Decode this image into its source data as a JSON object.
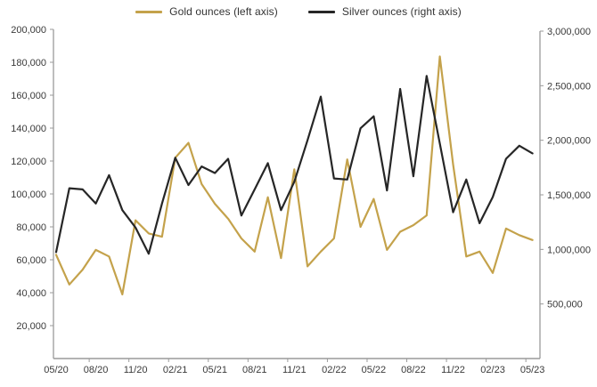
{
  "legend": {
    "items": [
      {
        "label": "Gold ounces (left axis)",
        "color": "#C4A24B",
        "icon": "gold-line-swatch"
      },
      {
        "label": "Silver ounces (right axis)",
        "color": "#262626",
        "icon": "silver-line-swatch"
      }
    ]
  },
  "colors": {
    "gold": "#C4A24B",
    "silver": "#262626",
    "axis_line": "#9a9a9a",
    "tick_text": "#3a3a3a",
    "background": "#ffffff"
  },
  "chart_data": {
    "type": "line",
    "title": "",
    "xlabel": "",
    "ylabel_left": "",
    "ylabel_right": "",
    "grid": false,
    "legend_position": "top",
    "x": [
      "05/20",
      "06/20",
      "07/20",
      "08/20",
      "09/20",
      "10/20",
      "11/20",
      "12/20",
      "01/21",
      "02/21",
      "03/21",
      "04/21",
      "05/21",
      "06/21",
      "07/21",
      "08/21",
      "09/21",
      "10/21",
      "11/21",
      "12/21",
      "01/22",
      "02/22",
      "03/22",
      "04/22",
      "05/22",
      "06/22",
      "07/22",
      "08/22",
      "09/22",
      "10/22",
      "11/22",
      "12/22",
      "01/23",
      "02/23",
      "03/23",
      "04/23",
      "05/23"
    ],
    "x_tick_labels": [
      "05/20",
      "08/20",
      "11/20",
      "02/21",
      "05/21",
      "08/21",
      "11/21",
      "02/22",
      "05/22",
      "08/22",
      "11/22",
      "02/23",
      "05/23"
    ],
    "series": [
      {
        "name": "Gold ounces (left axis)",
        "axis": "left",
        "color": "#C4A24B",
        "values": [
          63000,
          45000,
          54000,
          66000,
          62000,
          39000,
          84000,
          76000,
          74000,
          122000,
          131000,
          106000,
          94000,
          85000,
          73000,
          65000,
          98000,
          61000,
          115000,
          56000,
          65000,
          73000,
          121000,
          80000,
          97000,
          66000,
          77000,
          81000,
          87000,
          183500,
          118000,
          62000,
          65000,
          52000,
          79000,
          75000,
          72000
        ]
      },
      {
        "name": "Silver ounces (right axis)",
        "axis": "right",
        "color": "#262626",
        "values": [
          975000,
          1560000,
          1550000,
          1420000,
          1680000,
          1360000,
          1200000,
          960000,
          1420000,
          1840000,
          1590000,
          1760000,
          1700000,
          1830000,
          1310000,
          1550000,
          1790000,
          1360000,
          1620000,
          2000000,
          2400000,
          1650000,
          1640000,
          2110000,
          2220000,
          1540000,
          2470000,
          1670000,
          2590000,
          1970000,
          1340000,
          1640000,
          1240000,
          1480000,
          1830000,
          1950000,
          1880000
        ]
      }
    ],
    "left_axis": {
      "min": 0,
      "max": 200000,
      "label_min": 20000,
      "step": 20000,
      "labels": [
        "20,000",
        "40,000",
        "60,000",
        "80,000",
        "100,000",
        "120,000",
        "140,000",
        "160,000",
        "180,000",
        "200,000"
      ]
    },
    "right_axis": {
      "min": 0,
      "max": 3000000,
      "label_min": 500000,
      "step": 500000,
      "labels": [
        "500,000",
        "1,000,000",
        "1,500,000",
        "2,000,000",
        "2,500,000",
        "3,000,000"
      ]
    }
  }
}
